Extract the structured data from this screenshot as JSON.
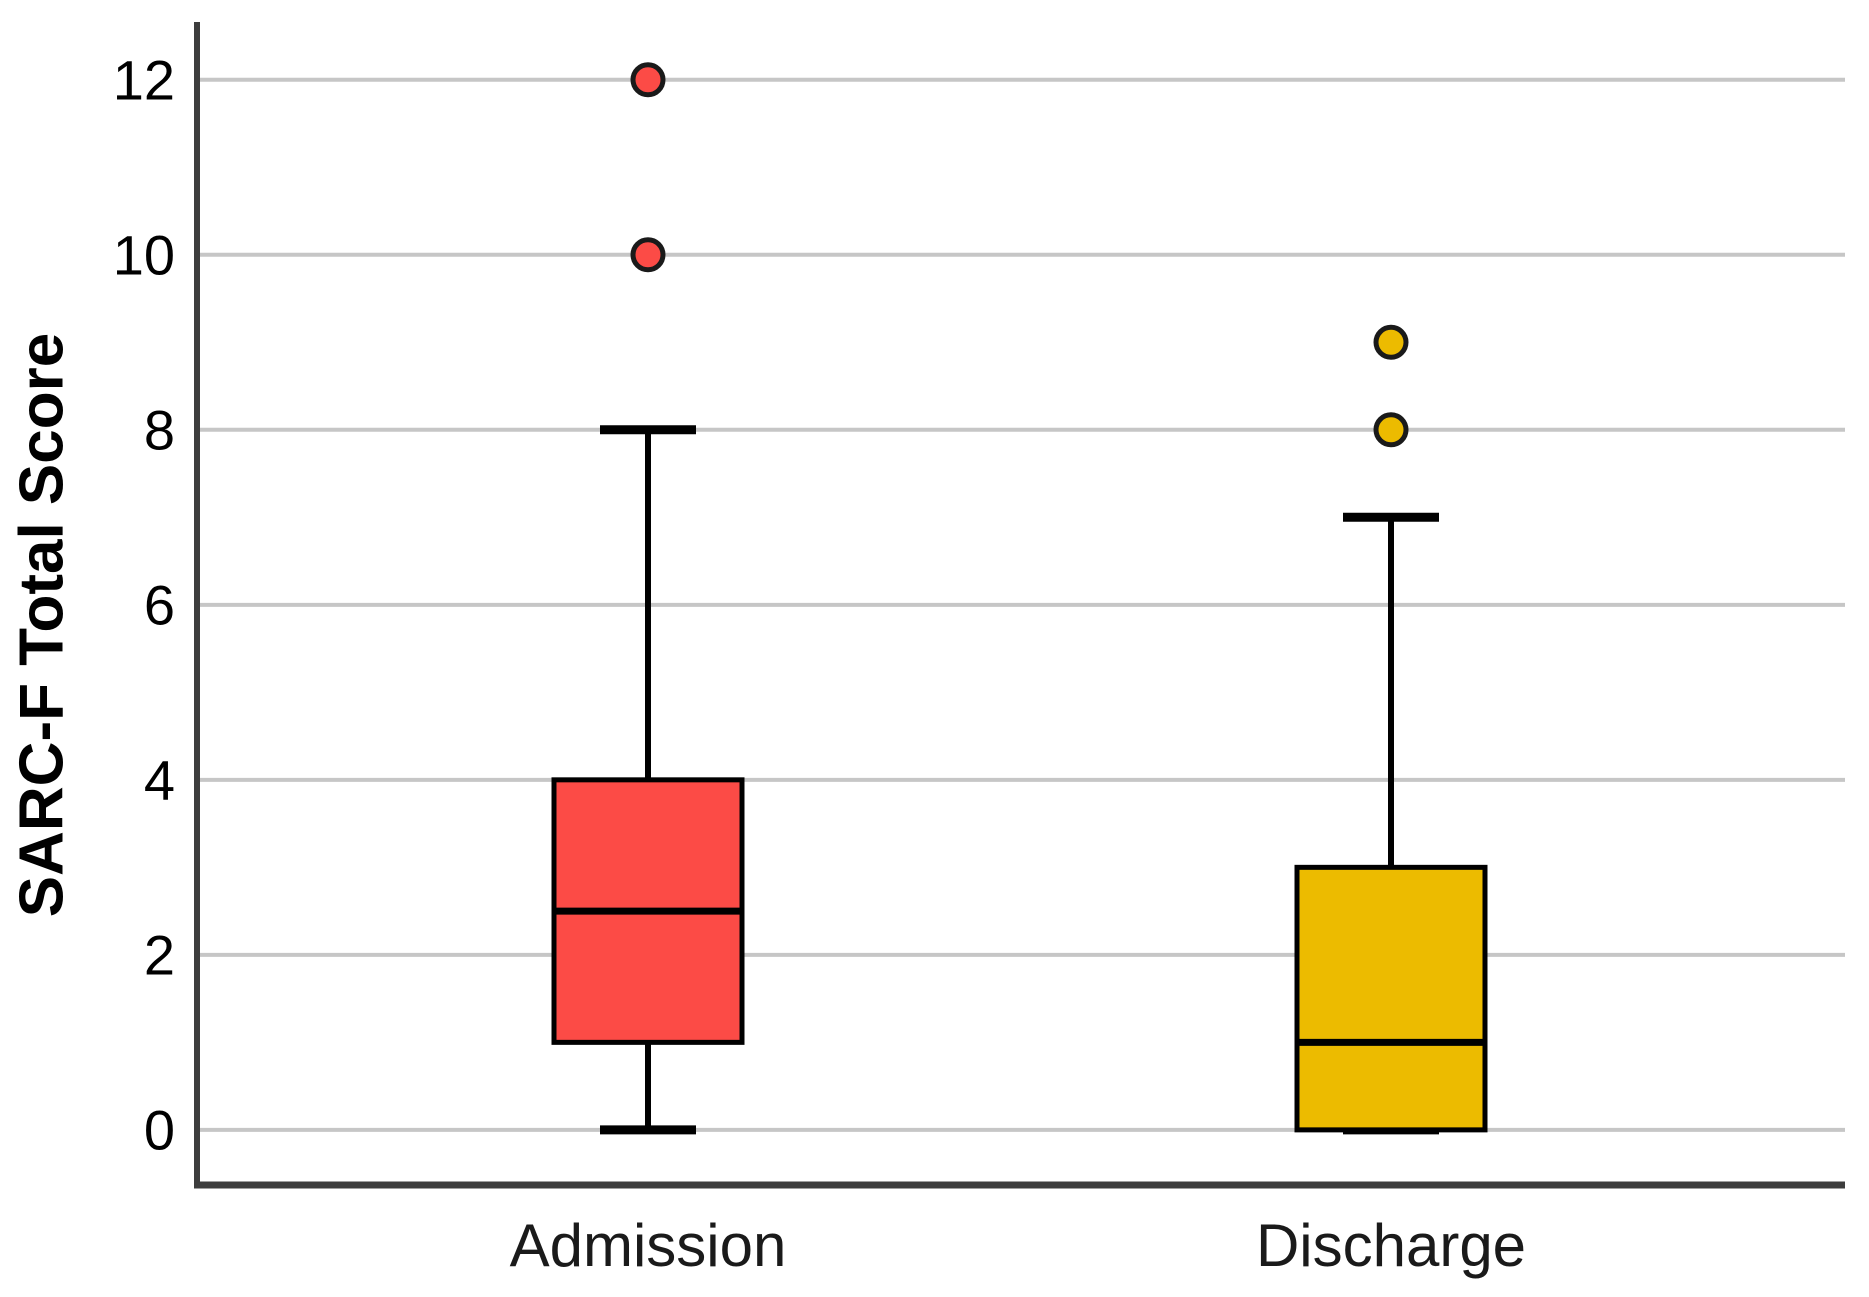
{
  "figure": {
    "background": "#ffffff"
  },
  "colors": {
    "axis_line": "#3d3d3d",
    "gridline": "#c6c6c6",
    "box_stroke": "#000000",
    "median_stroke": "#000000",
    "whisker_stroke": "#000000",
    "outlier_stroke": "#1a1a1a",
    "tick_text": "#000000",
    "category_text": "#1a1a1a"
  },
  "chart_data": {
    "type": "boxplot",
    "title": "",
    "xlabel": "",
    "ylabel": "SARC-F Total Score",
    "categories": [
      "Admission",
      "Discharge"
    ],
    "yticks": [
      0,
      2,
      4,
      6,
      8,
      10,
      12
    ],
    "ylim": [
      -0.63,
      12.66
    ],
    "grid": "horizontal",
    "legend": "none",
    "groups": [
      {
        "label": "Admission",
        "color": "#fc4b46",
        "whisker_low": 0,
        "q1": 1,
        "median": 2.5,
        "q3": 4,
        "whisker_high": 8,
        "outliers": [
          10,
          12
        ]
      },
      {
        "label": "Discharge",
        "color": "#ecbb00",
        "whisker_low": 0,
        "q1": 0,
        "median": 1,
        "q3": 3,
        "whisker_high": 7,
        "outliers": [
          8,
          9
        ]
      }
    ]
  }
}
